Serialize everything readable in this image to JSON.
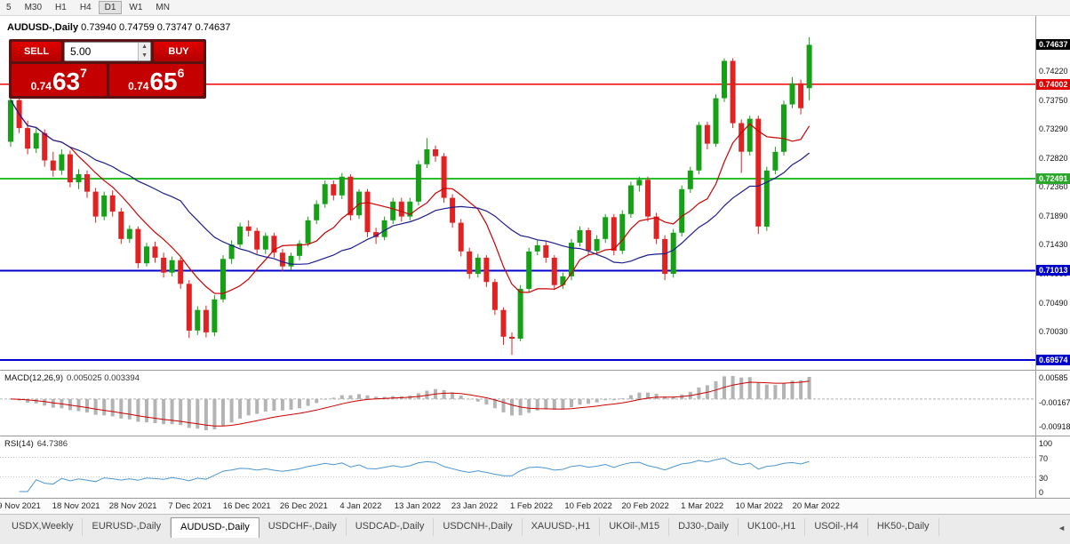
{
  "colors": {
    "up": "#16a016",
    "down": "#e02222",
    "ma_fast": "#cc0000",
    "ma_slow": "#1c1c8f",
    "macd_hist": "#b4b4b4",
    "macd_signal": "#cc0000",
    "rsi_line": "#4a96d2",
    "current_bg": "#000000"
  },
  "toolbar": {
    "timeframes": [
      {
        "label": "5",
        "active": false
      },
      {
        "label": "M30",
        "active": false
      },
      {
        "label": "H1",
        "active": false
      },
      {
        "label": "H4",
        "active": false
      },
      {
        "label": "D1",
        "active": true
      },
      {
        "label": "W1",
        "active": false
      },
      {
        "label": "MN",
        "active": false
      }
    ]
  },
  "chart": {
    "symbol_title": "AUDUSD-,Daily",
    "ohlc_text": "0.73940 0.74759 0.73747 0.74637"
  },
  "trade_panel": {
    "sell_label": "SELL",
    "buy_label": "BUY",
    "volume": "5.00",
    "sell_price": {
      "big": "0.74",
      "main": "63",
      "sup": "7"
    },
    "buy_price": {
      "big": "0.74",
      "main": "65",
      "sup": "6"
    }
  },
  "price_axis": {
    "ticks": [
      "0.74220",
      "0.73750",
      "0.73290",
      "0.72820",
      "0.72360",
      "0.71890",
      "0.71430",
      "0.70960",
      "0.70490",
      "0.70030",
      "0.69560"
    ],
    "current": "0.74637",
    "line_labels": [
      {
        "price": "0.74002",
        "bg": "#e00000"
      },
      {
        "price": "0.72491",
        "bg": "#2aa82a"
      },
      {
        "price": "0.71013",
        "bg": "#0000cc"
      },
      {
        "price": "0.69574",
        "bg": "#0000cc"
      }
    ]
  },
  "macd": {
    "label": "MACD(12,26,9)",
    "values": "0.005025 0.003394",
    "axis": [
      "0.00585",
      "-0.00167",
      "-0.00918"
    ]
  },
  "rsi": {
    "label": "RSI(14)",
    "value": "64.7386",
    "axis": [
      "100",
      "70",
      "30",
      "0"
    ],
    "levels": [
      70,
      30
    ],
    "period": 14
  },
  "x_axis": {
    "dates": [
      "9 Nov 2021",
      "18 Nov 2021",
      "28 Nov 2021",
      "7 Dec 2021",
      "16 Dec 2021",
      "26 Dec 2021",
      "4 Jan 2022",
      "13 Jan 2022",
      "23 Jan 2022",
      "1 Feb 2022",
      "10 Feb 2022",
      "20 Feb 2022",
      "1 Mar 2022",
      "10 Mar 2022",
      "20 Mar 2022"
    ]
  },
  "tabs": {
    "scroll_left": "◄",
    "items": [
      {
        "label": "USDX,Weekly",
        "active": false
      },
      {
        "label": "EURUSD-,Daily",
        "active": false
      },
      {
        "label": "AUDUSD-,Daily",
        "active": true
      },
      {
        "label": "USDCHF-,Daily",
        "active": false
      },
      {
        "label": "USDCAD-,Daily",
        "active": false
      },
      {
        "label": "USDCNH-,Daily",
        "active": false
      },
      {
        "label": "XAUUSD-,H1",
        "active": false
      },
      {
        "label": "UKOil-,M15",
        "active": false
      },
      {
        "label": "DJ30-,Daily",
        "active": false
      },
      {
        "label": "UK100-,H1",
        "active": false
      },
      {
        "label": "USOil-,H4",
        "active": false
      },
      {
        "label": "HK50-,Daily",
        "active": false
      }
    ]
  },
  "chart_data": {
    "type": "candlestick",
    "symbol": "AUDUSD-,Daily",
    "timeframe": "Daily",
    "ohlc_current": {
      "open": 0.7394,
      "high": 0.74759,
      "low": 0.73747,
      "close": 0.74637
    },
    "price_max": 0.751,
    "price_min": 0.6942,
    "ma_fast_period": 8,
    "ma_slow_period": 21,
    "macd_params": {
      "fast": 12,
      "slow": 26,
      "signal": 9
    },
    "h_lines": [
      {
        "price": 0.74002,
        "color": "#f00000",
        "width": 1.5
      },
      {
        "price": 0.72491,
        "color": "#2dbe2d",
        "width": 2
      },
      {
        "price": 0.71013,
        "color": "#0000d0",
        "width": 2
      },
      {
        "price": 0.69574,
        "color": "#0000d0",
        "width": 2
      }
    ],
    "candles": [
      [
        0.7308,
        0.7388,
        0.73,
        0.7375
      ],
      [
        0.7375,
        0.7384,
        0.7322,
        0.733
      ],
      [
        0.733,
        0.7342,
        0.7288,
        0.7297
      ],
      [
        0.7297,
        0.733,
        0.729,
        0.7322
      ],
      [
        0.7322,
        0.7328,
        0.7268,
        0.7278
      ],
      [
        0.7278,
        0.7292,
        0.7252,
        0.7262
      ],
      [
        0.7262,
        0.7296,
        0.7255,
        0.7288
      ],
      [
        0.7288,
        0.7294,
        0.7235,
        0.7243
      ],
      [
        0.7243,
        0.7264,
        0.7232,
        0.7256
      ],
      [
        0.7256,
        0.7262,
        0.7218,
        0.7228
      ],
      [
        0.7228,
        0.7234,
        0.7178,
        0.7188
      ],
      [
        0.7188,
        0.7228,
        0.7182,
        0.7222
      ],
      [
        0.7222,
        0.723,
        0.7188,
        0.7196
      ],
      [
        0.7196,
        0.7202,
        0.7144,
        0.7152
      ],
      [
        0.7152,
        0.7174,
        0.7146,
        0.7168
      ],
      [
        0.7168,
        0.7172,
        0.7105,
        0.7113
      ],
      [
        0.7113,
        0.7146,
        0.7108,
        0.714
      ],
      [
        0.714,
        0.7148,
        0.7114,
        0.7122
      ],
      [
        0.7122,
        0.713,
        0.709,
        0.7098
      ],
      [
        0.7098,
        0.7124,
        0.7092,
        0.7118
      ],
      [
        0.7118,
        0.7122,
        0.7072,
        0.708
      ],
      [
        0.708,
        0.7086,
        0.6993,
        0.7005
      ],
      [
        0.7005,
        0.7044,
        0.6998,
        0.7038
      ],
      [
        0.7038,
        0.7045,
        0.6994,
        0.7002
      ],
      [
        0.7002,
        0.7062,
        0.6996,
        0.7055
      ],
      [
        0.7055,
        0.7126,
        0.705,
        0.712
      ],
      [
        0.712,
        0.715,
        0.7112,
        0.7143
      ],
      [
        0.7143,
        0.7178,
        0.7138,
        0.7172
      ],
      [
        0.7172,
        0.7182,
        0.7156,
        0.7165
      ],
      [
        0.7165,
        0.717,
        0.7128,
        0.7135
      ],
      [
        0.7135,
        0.7162,
        0.7128,
        0.7157
      ],
      [
        0.7157,
        0.7162,
        0.7122,
        0.713
      ],
      [
        0.713,
        0.7136,
        0.71,
        0.7108
      ],
      [
        0.7108,
        0.713,
        0.7102,
        0.7125
      ],
      [
        0.7125,
        0.715,
        0.7118,
        0.7145
      ],
      [
        0.7145,
        0.7188,
        0.714,
        0.7182
      ],
      [
        0.7182,
        0.7214,
        0.7176,
        0.7208
      ],
      [
        0.7208,
        0.7246,
        0.7202,
        0.724
      ],
      [
        0.724,
        0.7246,
        0.7214,
        0.7222
      ],
      [
        0.7222,
        0.7258,
        0.7216,
        0.7252
      ],
      [
        0.7252,
        0.7256,
        0.7182,
        0.719
      ],
      [
        0.719,
        0.7232,
        0.7184,
        0.7228
      ],
      [
        0.7228,
        0.7232,
        0.7155,
        0.7163
      ],
      [
        0.7163,
        0.717,
        0.7144,
        0.7155
      ],
      [
        0.7155,
        0.7188,
        0.715,
        0.7182
      ],
      [
        0.7182,
        0.7218,
        0.7176,
        0.7212
      ],
      [
        0.7212,
        0.7218,
        0.718,
        0.7188
      ],
      [
        0.7188,
        0.7218,
        0.7182,
        0.7212
      ],
      [
        0.7212,
        0.7278,
        0.7206,
        0.7272
      ],
      [
        0.7272,
        0.7314,
        0.7266,
        0.7296
      ],
      [
        0.7296,
        0.7302,
        0.7276,
        0.7285
      ],
      [
        0.7285,
        0.729,
        0.721,
        0.7218
      ],
      [
        0.7218,
        0.7224,
        0.717,
        0.7178
      ],
      [
        0.7178,
        0.7184,
        0.7124,
        0.7132
      ],
      [
        0.7132,
        0.7138,
        0.7088,
        0.7096
      ],
      [
        0.7096,
        0.7128,
        0.709,
        0.7122
      ],
      [
        0.7122,
        0.7126,
        0.7075,
        0.7083
      ],
      [
        0.7083,
        0.7088,
        0.703,
        0.7038
      ],
      [
        0.7038,
        0.7042,
        0.6982,
        0.6995
      ],
      [
        0.6995,
        0.7002,
        0.6966,
        0.6992
      ],
      [
        0.6992,
        0.7078,
        0.6988,
        0.7072
      ],
      [
        0.7072,
        0.7138,
        0.7066,
        0.7132
      ],
      [
        0.7132,
        0.715,
        0.7126,
        0.7142
      ],
      [
        0.7142,
        0.7148,
        0.7114,
        0.7122
      ],
      [
        0.7122,
        0.7126,
        0.707,
        0.7078
      ],
      [
        0.7078,
        0.7098,
        0.7072,
        0.7092
      ],
      [
        0.7092,
        0.7152,
        0.7086,
        0.7146
      ],
      [
        0.7146,
        0.7172,
        0.714,
        0.7166
      ],
      [
        0.7166,
        0.717,
        0.7126,
        0.7133
      ],
      [
        0.7133,
        0.7158,
        0.7128,
        0.7152
      ],
      [
        0.7152,
        0.7192,
        0.7146,
        0.7187
      ],
      [
        0.7187,
        0.7192,
        0.7126,
        0.7133
      ],
      [
        0.7133,
        0.7198,
        0.7128,
        0.7192
      ],
      [
        0.7192,
        0.7244,
        0.7186,
        0.7238
      ],
      [
        0.7238,
        0.7252,
        0.7228,
        0.7247
      ],
      [
        0.7247,
        0.7252,
        0.718,
        0.7188
      ],
      [
        0.7188,
        0.7194,
        0.7144,
        0.7152
      ],
      [
        0.7152,
        0.7158,
        0.7086,
        0.7096
      ],
      [
        0.7096,
        0.7168,
        0.709,
        0.7162
      ],
      [
        0.7162,
        0.7238,
        0.7156,
        0.7232
      ],
      [
        0.7232,
        0.7268,
        0.7226,
        0.7262
      ],
      [
        0.7262,
        0.734,
        0.7256,
        0.7335
      ],
      [
        0.7335,
        0.734,
        0.7296,
        0.7305
      ],
      [
        0.7305,
        0.7384,
        0.73,
        0.7378
      ],
      [
        0.7378,
        0.7442,
        0.7372,
        0.7438
      ],
      [
        0.7438,
        0.7442,
        0.733,
        0.7338
      ],
      [
        0.7338,
        0.7344,
        0.7258,
        0.7292
      ],
      [
        0.7292,
        0.735,
        0.7286,
        0.7345
      ],
      [
        0.7345,
        0.735,
        0.716,
        0.7172
      ],
      [
        0.7172,
        0.7268,
        0.7165,
        0.7262
      ],
      [
        0.7262,
        0.73,
        0.7256,
        0.7292
      ],
      [
        0.7292,
        0.7374,
        0.7286,
        0.7368
      ],
      [
        0.7368,
        0.7412,
        0.7362,
        0.7402
      ],
      [
        0.7402,
        0.7408,
        0.7352,
        0.7362
      ],
      [
        0.7394,
        0.74759,
        0.73747,
        0.74637
      ]
    ]
  }
}
